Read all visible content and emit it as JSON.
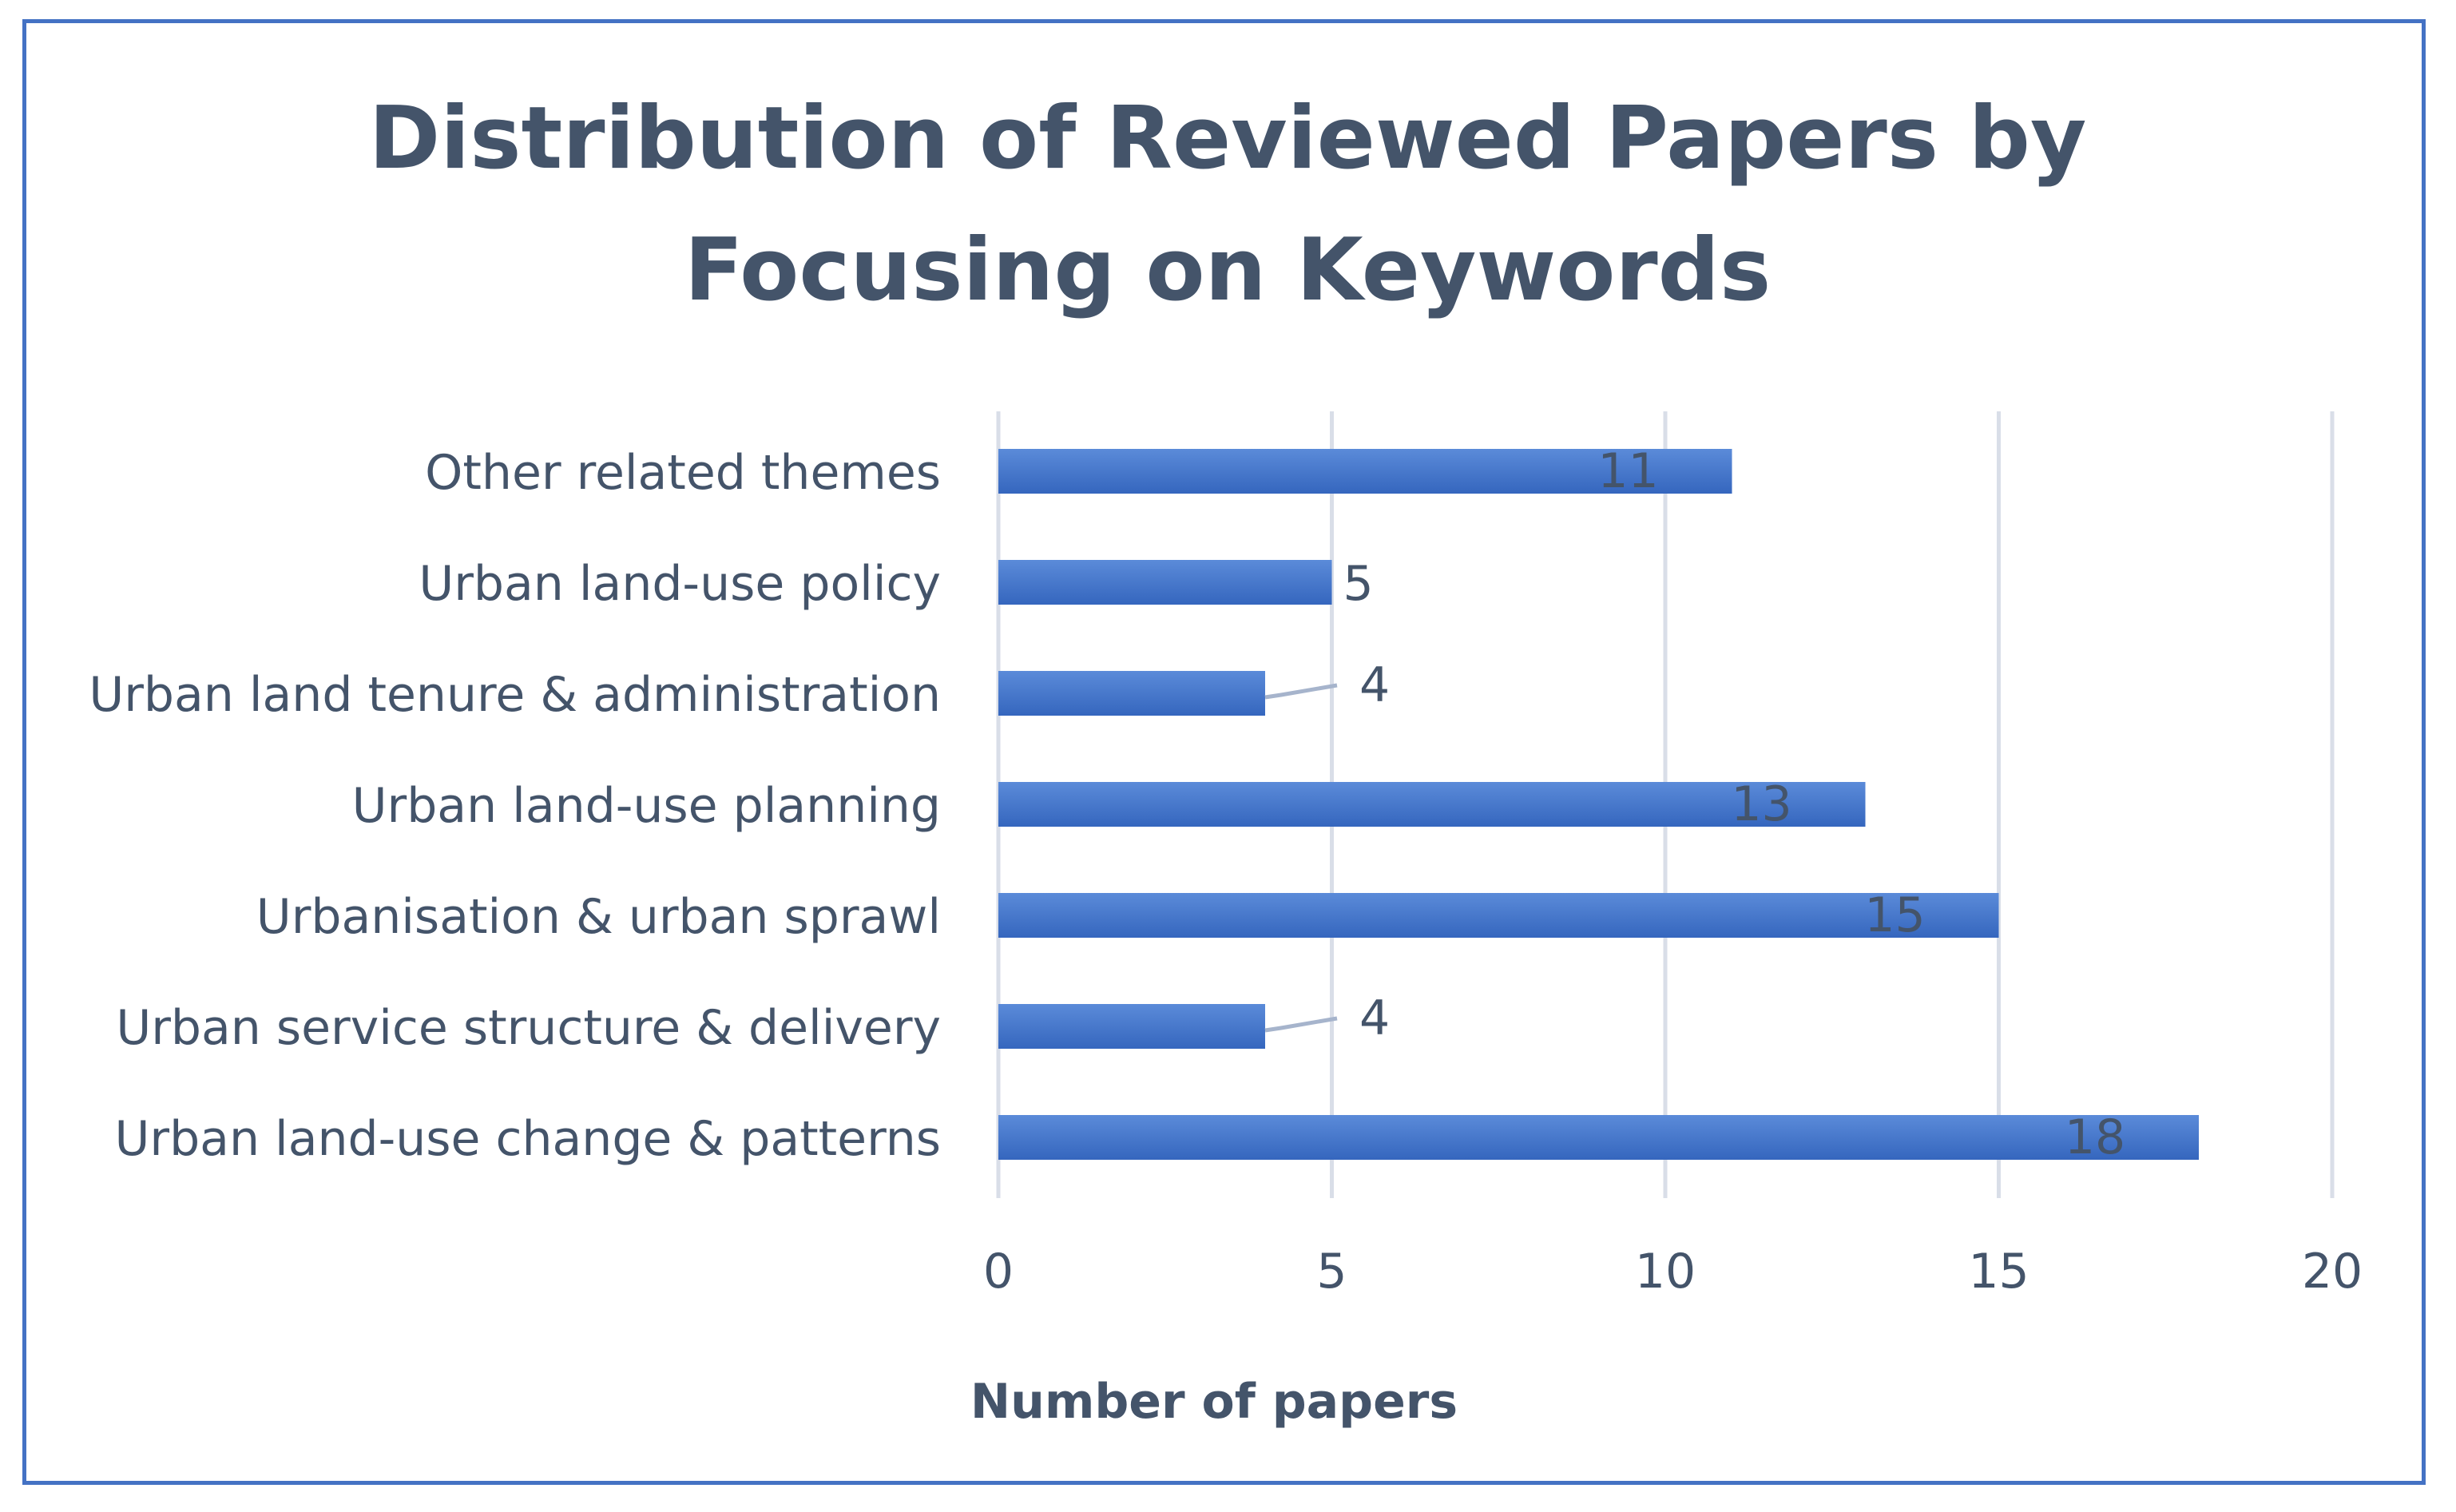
{
  "chart_data": {
    "type": "bar",
    "orientation": "horizontal",
    "title_lines": [
      "Distribution of Reviewed Papers by",
      "Focusing on Keywords"
    ],
    "xlabel": "Number of papers",
    "ylabel": "",
    "xlim": [
      0,
      20
    ],
    "xticks": [
      0,
      5,
      10,
      15,
      20
    ],
    "grid": true,
    "categories": [
      "Other related themes",
      "Urban land-use policy",
      "Urban land tenure & administration",
      "Urban land-use planning",
      "Urbanisation & urban sprawl",
      "Urban service structure & delivery",
      "Urban land-use change & patterns"
    ],
    "values": [
      11,
      5,
      4,
      13,
      15,
      4,
      18
    ],
    "bar_color": "#4472C4",
    "text_color": "#44546A"
  }
}
